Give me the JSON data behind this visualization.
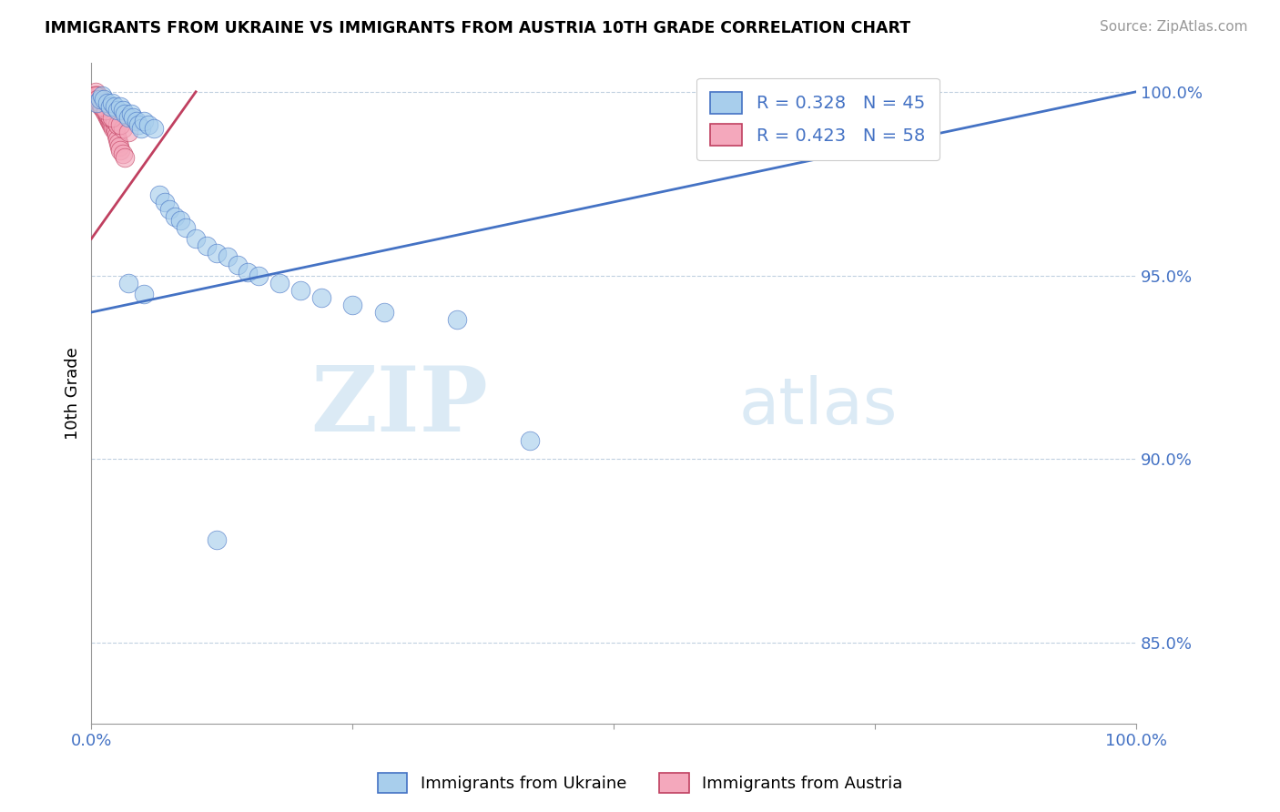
{
  "title": "IMMIGRANTS FROM UKRAINE VS IMMIGRANTS FROM AUSTRIA 10TH GRADE CORRELATION CHART",
  "source_text": "Source: ZipAtlas.com",
  "ylabel": "10th Grade",
  "legend_ukraine": "Immigrants from Ukraine",
  "legend_austria": "Immigrants from Austria",
  "r_ukraine": 0.328,
  "n_ukraine": 45,
  "r_austria": 0.423,
  "n_austria": 58,
  "ukraine_color": "#A8CEEC",
  "austria_color": "#F4A8BC",
  "ukraine_line_color": "#4472C4",
  "austria_line_color": "#C04060",
  "xlim": [
    0.0,
    1.0
  ],
  "ylim": [
    0.828,
    1.008
  ],
  "yticks": [
    0.85,
    0.9,
    0.95,
    1.0
  ],
  "ytick_labels": [
    "85.0%",
    "90.0%",
    "95.0%",
    "100.0%"
  ],
  "xticks": [
    0.0,
    0.25,
    0.5,
    0.75,
    1.0
  ],
  "xtick_labels": [
    "0.0%",
    "",
    "",
    "",
    "100.0%"
  ],
  "watermark_zip": "ZIP",
  "watermark_atlas": "atlas",
  "ukraine_x": [
    0.005,
    0.008,
    0.01,
    0.012,
    0.015,
    0.018,
    0.02,
    0.022,
    0.025,
    0.028,
    0.03,
    0.032,
    0.035,
    0.038,
    0.04,
    0.043,
    0.045,
    0.048,
    0.05,
    0.055,
    0.06,
    0.065,
    0.07,
    0.075,
    0.08,
    0.085,
    0.09,
    0.1,
    0.11,
    0.12,
    0.13,
    0.14,
    0.15,
    0.16,
    0.18,
    0.2,
    0.22,
    0.25,
    0.28,
    0.35,
    0.035,
    0.05,
    0.12,
    0.8,
    0.42
  ],
  "ukraine_y": [
    0.997,
    0.998,
    0.999,
    0.998,
    0.997,
    0.996,
    0.997,
    0.996,
    0.995,
    0.996,
    0.995,
    0.994,
    0.993,
    0.994,
    0.993,
    0.992,
    0.991,
    0.99,
    0.992,
    0.991,
    0.99,
    0.972,
    0.97,
    0.968,
    0.966,
    0.965,
    0.963,
    0.96,
    0.958,
    0.956,
    0.955,
    0.953,
    0.951,
    0.95,
    0.948,
    0.946,
    0.944,
    0.942,
    0.94,
    0.938,
    0.948,
    0.945,
    0.878,
    1.0,
    0.905
  ],
  "austria_x": [
    0.002,
    0.003,
    0.004,
    0.005,
    0.005,
    0.006,
    0.006,
    0.007,
    0.007,
    0.008,
    0.008,
    0.009,
    0.009,
    0.01,
    0.01,
    0.011,
    0.011,
    0.012,
    0.012,
    0.013,
    0.013,
    0.014,
    0.014,
    0.015,
    0.015,
    0.016,
    0.017,
    0.018,
    0.019,
    0.02,
    0.021,
    0.022,
    0.023,
    0.024,
    0.025,
    0.026,
    0.027,
    0.028,
    0.03,
    0.032,
    0.003,
    0.005,
    0.007,
    0.009,
    0.012,
    0.015,
    0.018,
    0.022,
    0.025,
    0.03,
    0.004,
    0.006,
    0.008,
    0.01,
    0.014,
    0.02,
    0.028,
    0.035
  ],
  "austria_y": [
    0.998,
    0.999,
    1.0,
    0.999,
    0.998,
    0.999,
    0.998,
    0.999,
    0.998,
    0.998,
    0.997,
    0.998,
    0.997,
    0.997,
    0.996,
    0.997,
    0.996,
    0.996,
    0.995,
    0.996,
    0.995,
    0.995,
    0.994,
    0.994,
    0.993,
    0.993,
    0.992,
    0.992,
    0.991,
    0.991,
    0.99,
    0.99,
    0.989,
    0.988,
    0.987,
    0.986,
    0.985,
    0.984,
    0.983,
    0.982,
    0.999,
    0.998,
    0.997,
    0.996,
    0.995,
    0.994,
    0.993,
    0.992,
    0.991,
    0.99,
    0.999,
    0.998,
    0.997,
    0.996,
    0.995,
    0.993,
    0.991,
    0.989
  ],
  "ukraine_trendline_x": [
    0.0,
    1.0
  ],
  "ukraine_trendline_y": [
    0.94,
    1.0
  ],
  "austria_trendline_x": [
    0.0,
    0.1
  ],
  "austria_trendline_y": [
    0.96,
    1.0
  ]
}
